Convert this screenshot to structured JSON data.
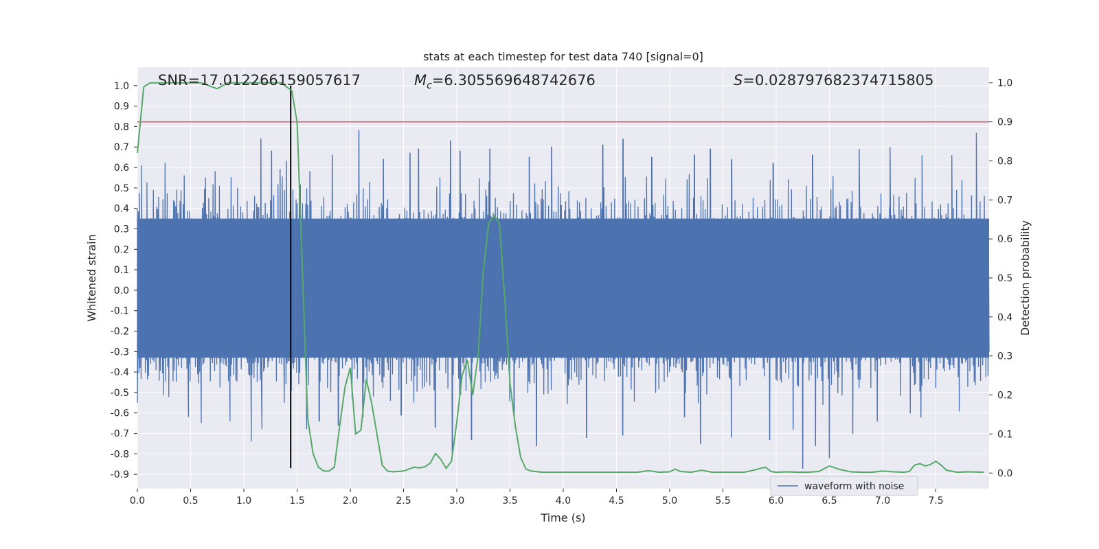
{
  "chart_data": {
    "type": "line",
    "title": "stats at each timestep for test data 740 [signal=0]",
    "xlabel": "Time (s)",
    "ylabel_left": "Whitened strain",
    "ylabel_right": "Detection probability",
    "xlim": [
      0.0,
      8.0
    ],
    "ylim_left": [
      -0.97,
      1.09
    ],
    "ylim_right": [
      -0.04,
      1.04
    ],
    "x_ticks": [
      0.0,
      0.5,
      1.0,
      1.5,
      2.0,
      2.5,
      3.0,
      3.5,
      4.0,
      4.5,
      5.0,
      5.5,
      6.0,
      6.5,
      7.0,
      7.5
    ],
    "x_tick_labels": [
      "0.0",
      "0.5",
      "1.0",
      "1.5",
      "2.0",
      "2.5",
      "3.0",
      "3.5",
      "4.0",
      "4.5",
      "5.0",
      "5.5",
      "6.0",
      "6.5",
      "7.0",
      "7.5"
    ],
    "y_ticks_left": [
      1.0,
      0.9,
      0.8,
      0.7,
      0.6,
      0.5,
      0.4,
      0.3,
      0.2,
      0.1,
      0.0,
      -0.1,
      -0.2,
      -0.3,
      -0.4,
      -0.5,
      -0.6,
      -0.7,
      -0.8,
      -0.9
    ],
    "y_tick_labels_left": [
      "1.0",
      "0.9",
      "0.8",
      "0.7",
      "0.6",
      "0.5",
      "0.4",
      "0.3",
      "0.2",
      "0.1",
      "0.0",
      "-0.1",
      "-0.2",
      "-0.3",
      "-0.4",
      "-0.5",
      "-0.6",
      "-0.7",
      "-0.8",
      "-0.9"
    ],
    "y_ticks_right": [
      1.0,
      0.9,
      0.8,
      0.7,
      0.6,
      0.5,
      0.4,
      0.3,
      0.2,
      0.1,
      0.0
    ],
    "y_tick_labels_right": [
      "1.0",
      "0.9",
      "0.8",
      "0.7",
      "0.6",
      "0.5",
      "0.4",
      "0.3",
      "0.2",
      "0.1",
      "0.0"
    ],
    "grid": true,
    "annotations": {
      "snr": "SNR=17.012266159057617",
      "mc_symbol": "M",
      "mc_subscript": "c",
      "mc_value": "=6.305569648742676",
      "s_symbol": "S",
      "s_value": "=0.028797682374715805"
    },
    "threshold_line": {
      "value": 0.9,
      "axis": "right",
      "color": "#c44e52"
    },
    "vertical_marker": {
      "x": 1.44,
      "color": "#000000"
    },
    "waveform": {
      "name": "waveform with noise",
      "color": "#4c72b0",
      "n_samples": 1600,
      "envelope_typical": 0.45,
      "dense_band": [
        -0.33,
        0.35
      ],
      "peaks": [
        [
          0.04,
          0.61
        ],
        [
          0.26,
          0.62
        ],
        [
          0.44,
          0.56
        ],
        [
          0.73,
          0.58
        ],
        [
          0.88,
          0.55
        ],
        [
          1.16,
          0.74
        ],
        [
          1.26,
          0.68
        ],
        [
          1.34,
          0.59
        ],
        [
          1.4,
          0.63
        ],
        [
          1.62,
          0.58
        ],
        [
          1.83,
          0.66
        ],
        [
          2.08,
          0.78
        ],
        [
          2.31,
          0.64
        ],
        [
          2.56,
          0.67
        ],
        [
          2.64,
          0.69
        ],
        [
          2.94,
          0.73
        ],
        [
          3.03,
          0.68
        ],
        [
          3.31,
          0.69
        ],
        [
          3.68,
          0.65
        ],
        [
          3.89,
          0.7
        ],
        [
          4.37,
          0.71
        ],
        [
          4.56,
          0.74
        ],
        [
          4.83,
          0.65
        ],
        [
          5.23,
          0.66
        ],
        [
          5.38,
          0.69
        ],
        [
          5.58,
          0.64
        ],
        [
          5.97,
          0.62
        ],
        [
          6.34,
          0.66
        ],
        [
          6.78,
          0.69
        ],
        [
          7.07,
          0.7
        ],
        [
          7.37,
          0.66
        ],
        [
          7.65,
          0.66
        ],
        [
          7.88,
          0.77
        ]
      ],
      "troughs": [
        [
          0.0,
          -0.55
        ],
        [
          0.48,
          -0.62
        ],
        [
          0.6,
          -0.65
        ],
        [
          0.87,
          -0.64
        ],
        [
          1.07,
          -0.74
        ],
        [
          1.17,
          -0.68
        ],
        [
          1.38,
          -0.55
        ],
        [
          1.59,
          -0.68
        ],
        [
          1.71,
          -0.64
        ],
        [
          1.89,
          -0.66
        ],
        [
          2.12,
          -0.62
        ],
        [
          2.48,
          -0.61
        ],
        [
          2.8,
          -0.67
        ],
        [
          2.96,
          -0.8
        ],
        [
          3.14,
          -0.73
        ],
        [
          3.54,
          -0.61
        ],
        [
          3.75,
          -0.76
        ],
        [
          4.22,
          -0.72
        ],
        [
          4.56,
          -0.71
        ],
        [
          5.14,
          -0.62
        ],
        [
          5.29,
          -0.75
        ],
        [
          5.58,
          -0.72
        ],
        [
          5.94,
          -0.73
        ],
        [
          6.16,
          -0.68
        ],
        [
          6.25,
          -0.87
        ],
        [
          6.37,
          -0.76
        ],
        [
          6.5,
          -0.82
        ],
        [
          6.72,
          -0.7
        ],
        [
          6.95,
          -0.64
        ],
        [
          7.26,
          -0.6
        ],
        [
          7.36,
          -0.62
        ],
        [
          7.72,
          -0.59
        ]
      ]
    },
    "detection_probability": {
      "color": "#55a868",
      "x": [
        0.0,
        0.06,
        0.12,
        0.2,
        0.3,
        0.4,
        0.5,
        0.6,
        0.7,
        0.75,
        0.85,
        0.95,
        1.05,
        1.15,
        1.25,
        1.35,
        1.4,
        1.45,
        1.5,
        1.55,
        1.6,
        1.65,
        1.7,
        1.75,
        1.8,
        1.85,
        1.9,
        1.95,
        2.0,
        2.05,
        2.1,
        2.15,
        2.2,
        2.25,
        2.3,
        2.35,
        2.4,
        2.5,
        2.6,
        2.65,
        2.7,
        2.75,
        2.8,
        2.85,
        2.9,
        2.95,
        3.0,
        3.05,
        3.1,
        3.15,
        3.2,
        3.25,
        3.3,
        3.35,
        3.4,
        3.45,
        3.5,
        3.55,
        3.6,
        3.65,
        3.7,
        3.8,
        4.0,
        4.2,
        4.5,
        4.7,
        4.8,
        4.9,
        5.0,
        5.05,
        5.1,
        5.2,
        5.3,
        5.4,
        5.6,
        5.7,
        5.8,
        5.9,
        5.95,
        6.0,
        6.1,
        6.2,
        6.3,
        6.4,
        6.5,
        6.6,
        6.7,
        6.8,
        6.9,
        7.0,
        7.1,
        7.2,
        7.25,
        7.3,
        7.35,
        7.4,
        7.45,
        7.5,
        7.55,
        7.6,
        7.7,
        7.8,
        7.95
      ],
      "y": [
        0.82,
        0.99,
        1.0,
        1.0,
        1.0,
        1.0,
        1.0,
        1.0,
        0.99,
        0.985,
        1.0,
        1.0,
        1.0,
        1.0,
        1.0,
        1.0,
        0.99,
        0.98,
        0.9,
        0.52,
        0.14,
        0.05,
        0.015,
        0.005,
        0.005,
        0.015,
        0.12,
        0.22,
        0.27,
        0.1,
        0.11,
        0.24,
        0.18,
        0.1,
        0.02,
        0.005,
        0.003,
        0.005,
        0.015,
        0.013,
        0.016,
        0.025,
        0.05,
        0.035,
        0.012,
        0.03,
        0.13,
        0.25,
        0.29,
        0.2,
        0.3,
        0.52,
        0.64,
        0.66,
        0.64,
        0.45,
        0.23,
        0.12,
        0.04,
        0.01,
        0.005,
        0.002,
        0.002,
        0.002,
        0.002,
        0.002,
        0.006,
        0.002,
        0.003,
        0.01,
        0.004,
        0.002,
        0.007,
        0.002,
        0.002,
        0.002,
        0.008,
        0.015,
        0.004,
        0.002,
        0.003,
        0.002,
        0.002,
        0.004,
        0.018,
        0.009,
        0.003,
        0.002,
        0.002,
        0.005,
        0.003,
        0.002,
        0.004,
        0.02,
        0.024,
        0.018,
        0.022,
        0.03,
        0.02,
        0.007,
        0.002,
        0.003,
        0.002
      ]
    },
    "legend": {
      "entries": [
        "waveform with noise"
      ],
      "placement": "lower-right"
    }
  }
}
